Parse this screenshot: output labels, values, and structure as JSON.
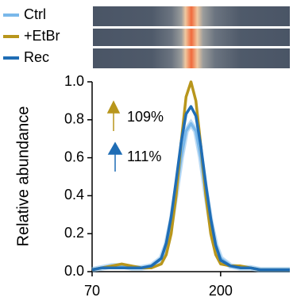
{
  "chart_data": {
    "type": "line",
    "y_label": "Relative abundance",
    "x": [
      70,
      80,
      90,
      100,
      110,
      120,
      130,
      140,
      145,
      150,
      155,
      160,
      165,
      170,
      175,
      180,
      185,
      190,
      195,
      200,
      210,
      220,
      230,
      240,
      250,
      260,
      270
    ],
    "series": [
      {
        "name": "Ctrl",
        "color": "#7ab8ea",
        "values": [
          0.01,
          0.02,
          0.03,
          0.03,
          0.02,
          0.02,
          0.03,
          0.07,
          0.14,
          0.26,
          0.42,
          0.6,
          0.74,
          0.78,
          0.74,
          0.6,
          0.42,
          0.26,
          0.14,
          0.07,
          0.03,
          0.02,
          0.02,
          0.01,
          0.01,
          0.01,
          0.01
        ]
      },
      {
        "name": "+EtBr",
        "color": "#b8961c",
        "values": [
          0.01,
          0.02,
          0.03,
          0.04,
          0.03,
          0.02,
          0.02,
          0.04,
          0.09,
          0.2,
          0.4,
          0.68,
          0.92,
          1.0,
          0.9,
          0.66,
          0.4,
          0.2,
          0.09,
          0.04,
          0.03,
          0.03,
          0.02,
          0.01,
          0.01,
          0.01,
          0.01
        ]
      },
      {
        "name": "Rec",
        "color": "#1f6db5",
        "values": [
          0.01,
          0.02,
          0.02,
          0.02,
          0.02,
          0.02,
          0.03,
          0.07,
          0.15,
          0.29,
          0.48,
          0.68,
          0.83,
          0.87,
          0.82,
          0.66,
          0.46,
          0.28,
          0.14,
          0.06,
          0.03,
          0.02,
          0.02,
          0.01,
          0.01,
          0.01,
          0.01
        ]
      }
    ],
    "xlim": [
      70,
      270
    ],
    "xticks": [
      70,
      200
    ],
    "ylim": [
      0,
      1
    ],
    "yticks": [
      {
        "value": 0,
        "label": "0.0"
      },
      0.2,
      0.4,
      0.6,
      0.8,
      {
        "value": 1,
        "label": "1.0"
      }
    ],
    "grid": false,
    "annotations": [
      {
        "text": "109%",
        "color": "#b8961c"
      },
      {
        "text": "111%",
        "color": "#1f6db5"
      }
    ]
  }
}
